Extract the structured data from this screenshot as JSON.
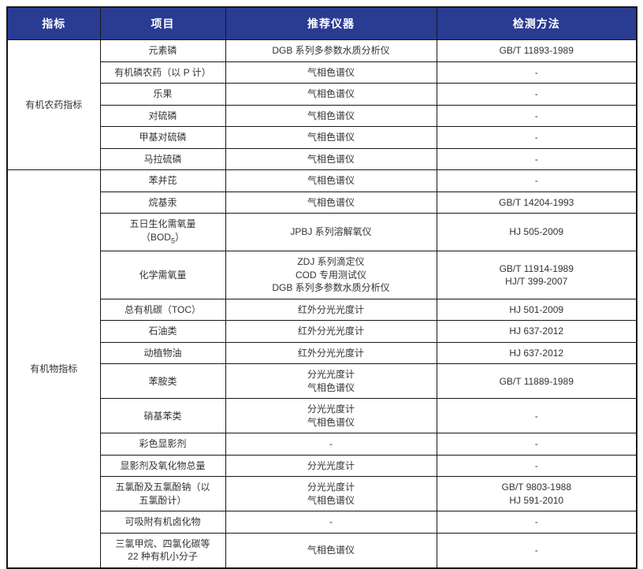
{
  "table": {
    "headers": [
      "指标",
      "项目",
      "推荐仪器",
      "检测方法"
    ],
    "groups": [
      {
        "indicator": "有机农药指标",
        "rows": [
          {
            "item": [
              "元素磷"
            ],
            "instrument": [
              "DGB 系列多参数水质分析仪"
            ],
            "method": [
              "GB/T 11893-1989"
            ]
          },
          {
            "item": [
              "有机磷农药（以 P 计）"
            ],
            "instrument": [
              "气相色谱仪"
            ],
            "method": [
              "-"
            ]
          },
          {
            "item": [
              "乐果"
            ],
            "instrument": [
              "气相色谱仪"
            ],
            "method": [
              "-"
            ]
          },
          {
            "item": [
              "对硫磷"
            ],
            "instrument": [
              "气相色谱仪"
            ],
            "method": [
              "-"
            ]
          },
          {
            "item": [
              "甲基对硫磷"
            ],
            "instrument": [
              "气相色谱仪"
            ],
            "method": [
              "-"
            ]
          },
          {
            "item": [
              "马拉硫磷"
            ],
            "instrument": [
              "气相色谱仪"
            ],
            "method": [
              "-"
            ]
          }
        ]
      },
      {
        "indicator": "有机物指标",
        "rows": [
          {
            "item": [
              "苯并芘"
            ],
            "instrument": [
              "气相色谱仪"
            ],
            "method": [
              "-"
            ]
          },
          {
            "item": [
              "烷基汞"
            ],
            "instrument": [
              "气相色谱仪"
            ],
            "method": [
              "GB/T 14204-1993"
            ]
          },
          {
            "item": [
              "五日生化需氧量",
              [
                "（BOD",
                {
                  "sub": "5"
                },
                "）"
              ]
            ],
            "instrument": [
              "JPBJ 系列溶解氧仪"
            ],
            "method": [
              "HJ 505-2009"
            ]
          },
          {
            "item": [
              "化学需氧量"
            ],
            "instrument": [
              "ZDJ 系列滴定仪",
              "COD 专用测试仪",
              "DGB 系列多参数水质分析仪"
            ],
            "method": [
              "GB/T 11914-1989",
              "HJ/T 399-2007"
            ]
          },
          {
            "item": [
              "总有机碳（TOC）"
            ],
            "instrument": [
              "红外分光光度计"
            ],
            "method": [
              "HJ 501-2009"
            ]
          },
          {
            "item": [
              "石油类"
            ],
            "instrument": [
              "红外分光光度计"
            ],
            "method": [
              "HJ 637-2012"
            ]
          },
          {
            "item": [
              "动植物油"
            ],
            "instrument": [
              "红外分光光度计"
            ],
            "method": [
              "HJ 637-2012"
            ]
          },
          {
            "item": [
              "苯胺类"
            ],
            "instrument": [
              "分光光度计",
              "气相色谱仪"
            ],
            "method": [
              "GB/T 11889-1989"
            ]
          },
          {
            "item": [
              "硝基苯类"
            ],
            "instrument": [
              "分光光度计",
              "气相色谱仪"
            ],
            "method": [
              "-"
            ]
          },
          {
            "item": [
              "彩色显影剂"
            ],
            "instrument": [
              "-"
            ],
            "method": [
              "-"
            ]
          },
          {
            "item": [
              "显影剂及氧化物总量"
            ],
            "instrument": [
              "分光光度计"
            ],
            "method": [
              "-"
            ]
          },
          {
            "item": [
              "五氯酚及五氯酚钠（以",
              "五氯酚计）"
            ],
            "instrument": [
              "分光光度计",
              "气相色谱仪"
            ],
            "method": [
              "GB/T 9803-1988",
              "HJ 591-2010"
            ]
          },
          {
            "item": [
              "可吸附有机卤化物"
            ],
            "instrument": [
              "-"
            ],
            "method": [
              "-"
            ]
          },
          {
            "item": [
              "三氯甲烷、四氯化碳等",
              "22 种有机小分子"
            ],
            "instrument": [
              "气相色谱仪"
            ],
            "method": [
              "-"
            ]
          }
        ]
      }
    ]
  },
  "colors": {
    "header_bg": "#2a3b92",
    "header_text": "#ffffff",
    "body_text": "#333333",
    "border": "#171717"
  }
}
